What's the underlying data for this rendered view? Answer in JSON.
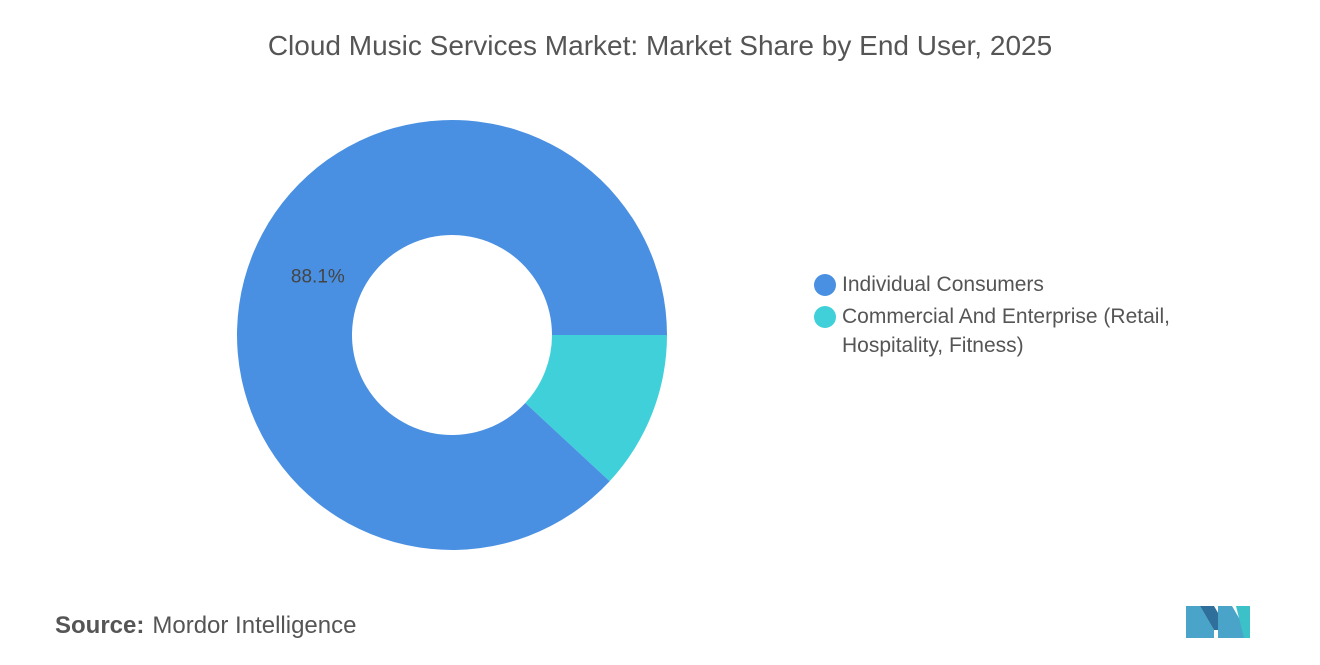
{
  "chart_data": {
    "type": "donut",
    "title": "Cloud Music Services Market: Market Share by End User, 2025",
    "categories": [
      "Individual Consumers",
      "Commercial And Enterprise (Retail, Hospitality, Fitness)"
    ],
    "values": [
      88.1,
      11.9
    ],
    "value_labels": [
      "88.1%",
      null
    ],
    "colors": [
      "#4a90e2",
      "#40d0da"
    ]
  },
  "source_label": "Source:",
  "source": "Mordor Intelligence"
}
